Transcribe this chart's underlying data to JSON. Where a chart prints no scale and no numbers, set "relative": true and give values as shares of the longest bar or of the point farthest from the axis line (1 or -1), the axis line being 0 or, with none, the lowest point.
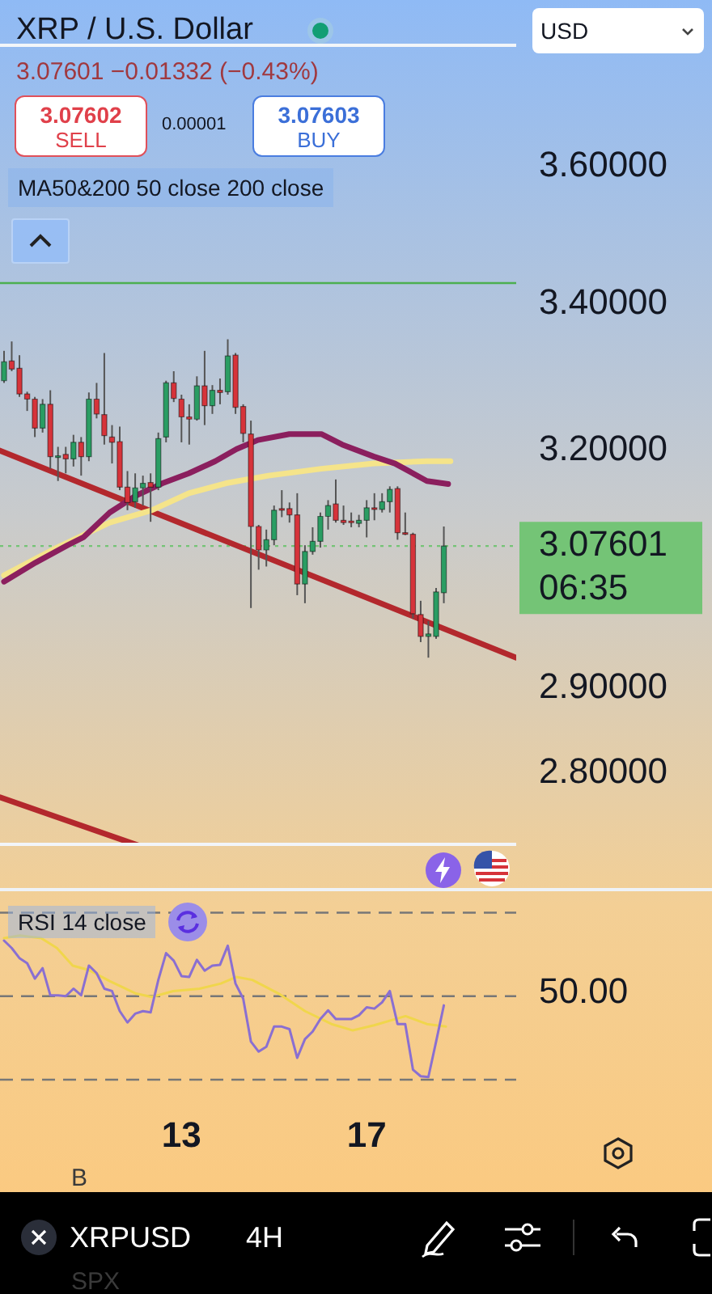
{
  "chart_data": [
    {
      "type": "candlestick",
      "title": "XRP / U.S. Dollar",
      "subtitle": "3.07601 −0.01332 (−0.43%)",
      "x": [
        9.167,
        9.333,
        9.5,
        9.667,
        9.833,
        10,
        10.167,
        10.333,
        10.5,
        10.667,
        10.833,
        11,
        11.167,
        11.333,
        11.5,
        11.667,
        11.833,
        12,
        12.167,
        12.333,
        12.5,
        12.667,
        12.833,
        13,
        13.167,
        13.333,
        13.5,
        13.667,
        13.833,
        14,
        14.167,
        14.333,
        14.5,
        14.667,
        14.833,
        15,
        15.167,
        15.333,
        15.5,
        15.667,
        15.833,
        16,
        16.167,
        16.333,
        16.5,
        16.667,
        16.833,
        17,
        17.167,
        17.333,
        17.5,
        17.667,
        17.833,
        18,
        18.167,
        18.333,
        18.5,
        18.667
      ],
      "ohlc": [
        [
          3.294,
          3.335,
          3.291,
          3.32
        ],
        [
          3.321,
          3.348,
          3.307,
          3.31
        ],
        [
          3.311,
          3.329,
          3.272,
          3.276
        ],
        [
          3.276,
          3.279,
          3.253,
          3.269
        ],
        [
          3.269,
          3.272,
          3.218,
          3.23
        ],
        [
          3.23,
          3.269,
          3.224,
          3.262
        ],
        [
          3.262,
          3.281,
          3.176,
          3.192
        ],
        [
          3.191,
          3.205,
          3.16,
          3.193
        ],
        [
          3.195,
          3.205,
          3.17,
          3.189
        ],
        [
          3.189,
          3.221,
          3.179,
          3.211
        ],
        [
          3.211,
          3.218,
          3.167,
          3.192
        ],
        [
          3.192,
          3.278,
          3.186,
          3.269
        ],
        [
          3.269,
          3.291,
          3.243,
          3.249
        ],
        [
          3.248,
          3.332,
          3.208,
          3.22
        ],
        [
          3.218,
          3.234,
          3.183,
          3.211
        ],
        [
          3.212,
          3.232,
          3.148,
          3.152
        ],
        [
          3.152,
          3.173,
          3.122,
          3.132
        ],
        [
          3.133,
          3.17,
          3.125,
          3.151
        ],
        [
          3.151,
          3.167,
          3.128,
          3.157
        ],
        [
          3.158,
          3.17,
          3.107,
          3.152
        ],
        [
          3.152,
          3.224,
          3.148,
          3.216
        ],
        [
          3.218,
          3.294,
          3.211,
          3.291
        ],
        [
          3.291,
          3.307,
          3.265,
          3.27
        ],
        [
          3.269,
          3.275,
          3.211,
          3.245
        ],
        [
          3.245,
          3.262,
          3.208,
          3.242
        ],
        [
          3.242,
          3.3,
          3.24,
          3.287
        ],
        [
          3.287,
          3.335,
          3.234,
          3.26
        ],
        [
          3.26,
          3.288,
          3.249,
          3.281
        ],
        [
          3.281,
          3.297,
          3.262,
          3.278
        ],
        [
          3.279,
          3.351,
          3.275,
          3.328
        ],
        [
          3.329,
          3.332,
          3.249,
          3.258
        ],
        [
          3.259,
          3.262,
          3.211,
          3.223
        ],
        [
          3.222,
          3.24,
          2.998,
          3.101
        ],
        [
          3.101,
          3.103,
          3.046,
          3.071
        ],
        [
          3.071,
          3.097,
          3.05,
          3.084
        ],
        [
          3.084,
          3.128,
          3.077,
          3.122
        ],
        [
          3.124,
          3.148,
          3.113,
          3.122
        ],
        [
          3.124,
          3.132,
          3.106,
          3.116
        ],
        [
          3.116,
          3.144,
          3.014,
          3.028
        ],
        [
          3.028,
          3.077,
          3.004,
          3.069
        ],
        [
          3.069,
          3.1,
          3.065,
          3.082
        ],
        [
          3.082,
          3.119,
          3.074,
          3.114
        ],
        [
          3.114,
          3.135,
          3.097,
          3.128
        ],
        [
          3.13,
          3.162,
          3.106,
          3.109
        ],
        [
          3.109,
          3.128,
          3.103,
          3.106
        ],
        [
          3.108,
          3.119,
          3.1,
          3.106
        ],
        [
          3.105,
          3.116,
          3.1,
          3.109
        ],
        [
          3.109,
          3.135,
          3.087,
          3.125
        ],
        [
          3.125,
          3.144,
          3.109,
          3.123
        ],
        [
          3.123,
          3.144,
          3.119,
          3.133
        ],
        [
          3.133,
          3.153,
          3.119,
          3.149
        ],
        [
          3.15,
          3.153,
          3.084,
          3.093
        ],
        [
          3.093,
          3.119,
          3.09,
          3.091
        ],
        [
          3.091,
          3.093,
          2.985,
          2.991
        ],
        [
          2.99,
          3.007,
          2.956,
          2.963
        ],
        [
          2.963,
          2.982,
          2.937,
          2.966
        ],
        [
          2.963,
          3.023,
          2.96,
          3.018
        ],
        [
          3.017,
          3.101,
          3.004,
          3.076
        ]
      ],
      "colors": [
        "#2a9d63",
        "#d6333a",
        "#d6333a",
        "#d6333a",
        "#d6333a",
        "#2a9d63",
        "#d6333a",
        "#2a9d63",
        "#d6333a",
        "#2a9d63",
        "#d6333a",
        "#2a9d63",
        "#d6333a",
        "#d6333a",
        "#d6333a",
        "#d6333a",
        "#d6333a",
        "#2a9d63",
        "#2a9d63",
        "#d6333a",
        "#2a9d63",
        "#2a9d63",
        "#d6333a",
        "#d6333a",
        "#d6333a",
        "#2a9d63",
        "#d6333a",
        "#2a9d63",
        "#d6333a",
        "#2a9d63",
        "#d6333a",
        "#d6333a",
        "#d6333a",
        "#d6333a",
        "#2a9d63",
        "#2a9d63",
        "#d6333a",
        "#d6333a",
        "#d6333a",
        "#2a9d63",
        "#2a9d63",
        "#2a9d63",
        "#2a9d63",
        "#d6333a",
        "#d6333a",
        "#d6333a",
        "#2a9d63",
        "#2a9d63",
        "#d6333a",
        "#2a9d63",
        "#2a9d63",
        "#d6333a",
        "#d6333a",
        "#d6333a",
        "#d6333a",
        "#2a9d63",
        "#2a9d63",
        "#2a9d63"
      ],
      "series": [
        {
          "type": "line",
          "color": "#8b1f5e",
          "x": [
            9.167,
            9.85,
            10.54,
            10.88,
            11.45,
            12.02,
            12.59,
            13.16,
            13.73,
            14.19,
            14.65,
            15.33,
            16.02,
            16.47,
            17.16,
            17.61,
            18.3,
            18.76
          ],
          "values": [
            3.031,
            3.055,
            3.077,
            3.087,
            3.119,
            3.141,
            3.157,
            3.17,
            3.186,
            3.202,
            3.214,
            3.222,
            3.222,
            3.208,
            3.192,
            3.183,
            3.16,
            3.156
          ]
        },
        {
          "type": "line",
          "color": "#f5e48a",
          "x": [
            9.167,
            10.31,
            11.45,
            12.36,
            13.16,
            13.96,
            14.88,
            16.02,
            17.16,
            18.3,
            18.81
          ],
          "values": [
            3.039,
            3.074,
            3.106,
            3.122,
            3.144,
            3.157,
            3.167,
            3.176,
            3.183,
            3.186,
            3.186
          ]
        },
        {
          "type": "line",
          "color": "#b3282d",
          "x": [
            9.08,
            20.23
          ],
          "values": [
            3.2,
            2.937
          ]
        },
        {
          "type": "line",
          "color": "#b3282d",
          "x": [
            9.08,
            12.08
          ],
          "values": [
            2.772,
            2.717
          ]
        }
      ],
      "xlim": [
        9.08,
        20.23
      ],
      "ylim": [
        2.717,
        3.787
      ],
      "yticks": [
        {
          "value": 3.6,
          "label": "3.60000"
        },
        {
          "value": 3.4,
          "label": "3.40000"
        },
        {
          "value": 3.2,
          "label": "3.20000"
        },
        {
          "value": 2.9,
          "label": "2.90000"
        },
        {
          "value": 2.8,
          "label": "2.80000"
        }
      ],
      "log": "y",
      "tick_labels": "y",
      "ref_lines": [
        {
          "axis": "y",
          "value": 3.43,
          "color": "#4caf50",
          "line_style": "solid"
        },
        {
          "axis": "y",
          "value": 3.07601,
          "label": "3.07601",
          "color": "#74c476",
          "line_style": "dotted"
        }
      ],
      "annotations": [
        "3.07602",
        "SELL",
        "0.00001",
        "3.07603",
        "BUY",
        "MA50&200 50 close 200 close",
        "USD",
        "06:35",
        "XRPUSD",
        "4H",
        "B",
        "SPX"
      ]
    },
    {
      "type": "line",
      "title": "RSI 14 close",
      "x": [
        9.167,
        9.333,
        9.5,
        9.667,
        9.833,
        10,
        10.167,
        10.333,
        10.5,
        10.667,
        10.833,
        11,
        11.167,
        11.333,
        11.5,
        11.667,
        11.833,
        12,
        12.167,
        12.333,
        12.5,
        12.667,
        12.833,
        13,
        13.167,
        13.333,
        13.5,
        13.667,
        13.833,
        14,
        14.167,
        14.333,
        14.5,
        14.667,
        14.833,
        15,
        15.167,
        15.333,
        15.5,
        15.667,
        15.833,
        16,
        16.167,
        16.333,
        16.5,
        16.667,
        16.833,
        17,
        17.167,
        17.333,
        17.5,
        17.667,
        17.833,
        18,
        18.167,
        18.333,
        18.5,
        18.667
      ],
      "series": [
        {
          "color": "#8a6fd1",
          "values": [
            0.965,
            0.912,
            0.841,
            0.805,
            0.696,
            0.77,
            0.578,
            0.578,
            0.572,
            0.625,
            0.578,
            0.788,
            0.735,
            0.625,
            0.608,
            0.466,
            0.386,
            0.448,
            0.466,
            0.457,
            0.687,
            0.876,
            0.823,
            0.714,
            0.708,
            0.829,
            0.752,
            0.788,
            0.794,
            0.929,
            0.661,
            0.555,
            0.251,
            0.18,
            0.215,
            0.357,
            0.357,
            0.339,
            0.136,
            0.268,
            0.322,
            0.41,
            0.472,
            0.41,
            0.41,
            0.41,
            0.437,
            0.493,
            0.484,
            0.528,
            0.608,
            0.375,
            0.375,
            0.053,
            0.006,
            0,
            0.251,
            0.507
          ]
        },
        {
          "color": "#f0d64c",
          "x": [
            9.167,
            9.51,
            9.97,
            10.31,
            10.65,
            10.99,
            11.45,
            12.02,
            12.36,
            12.82,
            13.39,
            13.85,
            14.19,
            14.53,
            15.1,
            15.67,
            16.24,
            16.7,
            17.16,
            17.84,
            18.3,
            18.71
          ],
          "values": [
            0.982,
            1,
            0.982,
            0.912,
            0.788,
            0.758,
            0.678,
            0.59,
            0.566,
            0.608,
            0.625,
            0.661,
            0.708,
            0.687,
            0.59,
            0.466,
            0.375,
            0.33,
            0.366,
            0.431,
            0.375,
            0.357
          ]
        }
      ],
      "relative": true,
      "tick_labels": "x",
      "xlim": [
        9.08,
        20.23
      ],
      "xticks": [
        13,
        17
      ],
      "ref_lines": [
        {
          "axis": "y",
          "value": 1.162,
          "line_style": "dashed"
        },
        {
          "axis": "y",
          "value": 0.572,
          "line_style": "dashed"
        },
        {
          "axis": "y",
          "value": -0.018,
          "line_style": "dashed"
        }
      ],
      "annotations": [
        "50.00"
      ]
    }
  ]
}
